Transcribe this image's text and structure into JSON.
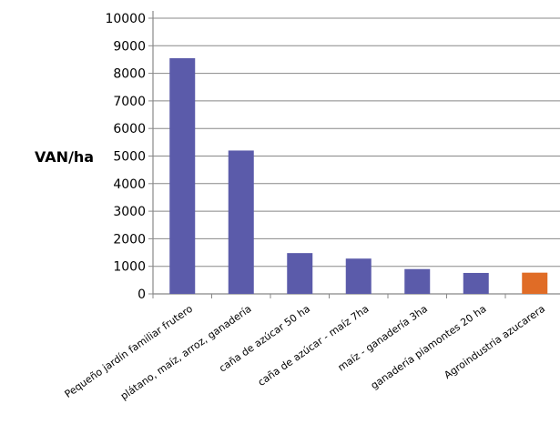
{
  "chart_data": {
    "type": "bar",
    "title": "",
    "xlabel": "",
    "ylabel": "VAN/ha",
    "ylim": [
      0,
      10000
    ],
    "ytick_step": 1000,
    "grid": true,
    "categories": [
      "Pequeño jardín familiar frutero",
      "plátano, maíz, arroz, ganadería",
      "caña de azúcar 50 ha",
      "caña de azúcar - maíz 7ha",
      "maíz - ganadería 3ha",
      "ganadería piamontes 20 ha",
      "Agroindustria azucarera"
    ],
    "values": [
      8550,
      5200,
      1480,
      1280,
      900,
      760,
      770
    ],
    "bar_colors": [
      "#5b5baa",
      "#5b5baa",
      "#5b5baa",
      "#5b5baa",
      "#5b5baa",
      "#5b5baa",
      "#e06c26"
    ]
  }
}
